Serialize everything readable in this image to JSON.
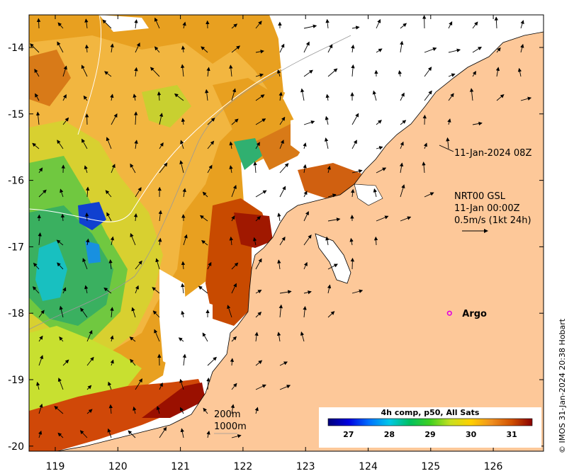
{
  "map": {
    "timestamp": "11-Jan-2024 08Z",
    "product": "NRT00 GSL",
    "product_time": "11-Jan 00:00Z",
    "scale_label": "0.5m/s (1kt 24h)",
    "argo_label": "Argo",
    "isobath_1": "200m",
    "isobath_2": "1000m",
    "credit": "© IMOS 31-Jan-2024 20:38 Hobart",
    "colorbar_title": "4h comp, p50, All Sats",
    "colorbar_ticks": [
      "27",
      "28",
      "29",
      "30",
      "31"
    ],
    "colorbar_values": [
      27,
      28,
      29,
      30,
      31
    ],
    "colorbar_range": [
      26.5,
      31.5
    ],
    "colors": {
      "land": "#fdc899",
      "argo": "#e000e0"
    },
    "lon_ticks": [
      "119",
      "120",
      "121",
      "122",
      "123",
      "124",
      "125",
      "126"
    ],
    "lon_values": [
      119,
      120,
      121,
      122,
      123,
      124,
      125,
      126
    ],
    "lat_ticks": [
      "-14",
      "-15",
      "-16",
      "-17",
      "-18",
      "-19",
      "-20"
    ],
    "lat_values": [
      -14,
      -15,
      -16,
      -17,
      -18,
      -19,
      -20
    ],
    "argo_position": {
      "lon": 125.3,
      "lat": -18.0
    }
  }
}
